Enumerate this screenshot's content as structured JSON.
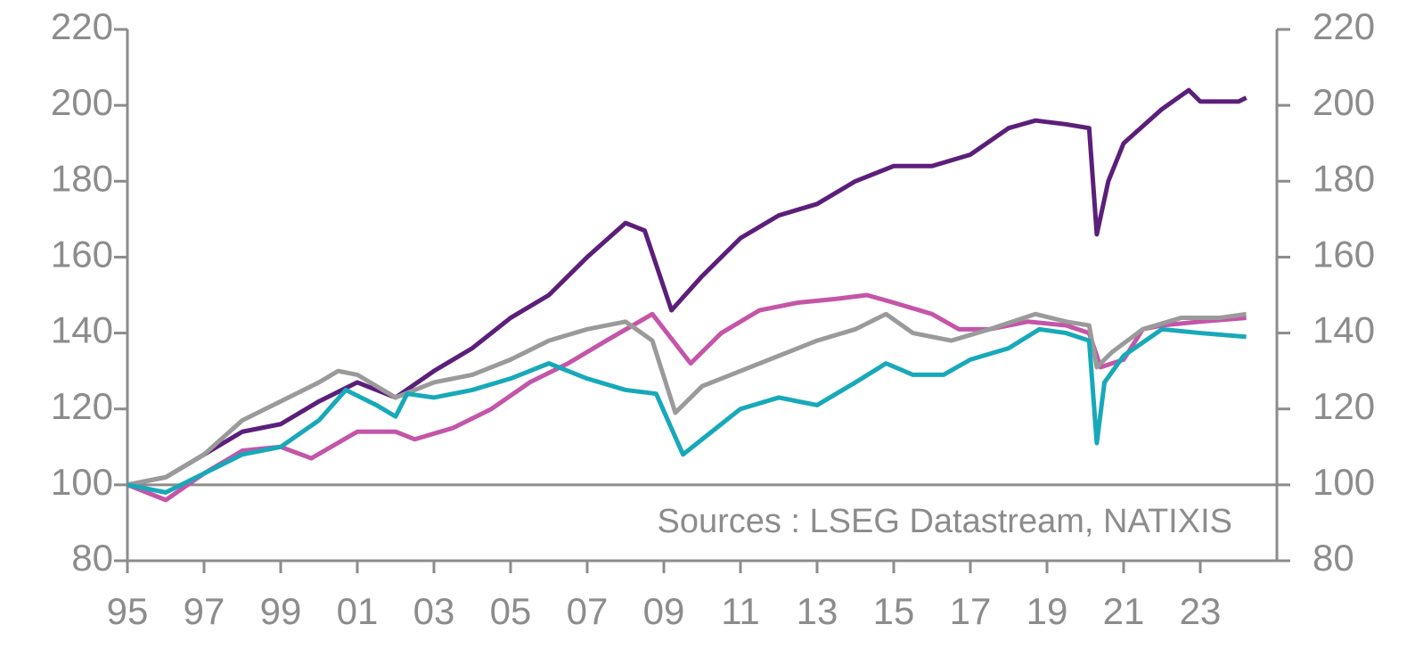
{
  "chart_data": {
    "type": "line",
    "annotation": "Sources : LSEG Datastream, NATIXIS",
    "xlim": [
      1995,
      2025
    ],
    "ylim": [
      80,
      220
    ],
    "y2lim": [
      80,
      220
    ],
    "xticks": [
      {
        "value": 1995,
        "label": "95"
      },
      {
        "value": 1997,
        "label": "97"
      },
      {
        "value": 1999,
        "label": "99"
      },
      {
        "value": 2001,
        "label": "01"
      },
      {
        "value": 2003,
        "label": "03"
      },
      {
        "value": 2005,
        "label": "05"
      },
      {
        "value": 2007,
        "label": "07"
      },
      {
        "value": 2009,
        "label": "09"
      },
      {
        "value": 2011,
        "label": "11"
      },
      {
        "value": 2013,
        "label": "13"
      },
      {
        "value": 2015,
        "label": "15"
      },
      {
        "value": 2017,
        "label": "17"
      },
      {
        "value": 2019,
        "label": "19"
      },
      {
        "value": 2021,
        "label": "21"
      },
      {
        "value": 2023,
        "label": "23"
      }
    ],
    "yticks": [
      80,
      100,
      120,
      140,
      160,
      180,
      200,
      220
    ],
    "y2ticks": [
      80,
      100,
      120,
      140,
      160,
      180,
      200,
      220
    ],
    "reference_line": 100,
    "series": [
      {
        "color": "#5b1f7a",
        "x": [
          1995,
          1996,
          1997,
          1998,
          1999,
          2000,
          2001,
          2002,
          2003,
          2004,
          2005,
          2006,
          2007,
          2008,
          2008.5,
          2009.2,
          2010,
          2011,
          2012,
          2013,
          2014,
          2015,
          2016,
          2017,
          2018,
          2018.7,
          2019.5,
          2020.1,
          2020.3,
          2020.6,
          2021,
          2022,
          2022.7,
          2023,
          2024,
          2024.2
        ],
        "values": [
          100,
          102,
          108,
          114,
          116,
          122,
          127,
          123,
          130,
          136,
          144,
          150,
          160,
          169,
          167,
          146,
          155,
          165,
          171,
          174,
          180,
          184,
          184,
          187,
          194,
          196,
          195,
          194,
          166,
          180,
          190,
          199,
          204,
          201,
          201,
          202
        ]
      },
      {
        "color": "#c455a8",
        "x": [
          1995,
          1996,
          1997,
          1998,
          1999,
          1999.8,
          2001,
          2002,
          2002.5,
          2003.5,
          2004.5,
          2005.5,
          2006.5,
          2007.5,
          2008.7,
          2009.7,
          2010.5,
          2011.5,
          2012.5,
          2013.5,
          2014.3,
          2015,
          2016,
          2016.7,
          2017.5,
          2018.5,
          2019.5,
          2020.1,
          2020.4,
          2021,
          2021.5,
          2022,
          2023,
          2024.2
        ],
        "values": [
          100,
          96,
          103,
          109,
          110,
          107,
          114,
          114,
          112,
          115,
          120,
          127,
          132,
          138,
          145,
          132,
          140,
          146,
          148,
          149,
          150,
          148,
          145,
          141,
          141,
          143,
          142,
          140,
          131,
          133,
          141,
          142,
          143,
          144
        ]
      },
      {
        "color": "#9a9a9a",
        "x": [
          1995,
          1996,
          1997,
          1998,
          1999,
          2000,
          2000.5,
          2001,
          2002,
          2003,
          2004,
          2005,
          2006,
          2007,
          2008,
          2008.7,
          2009.3,
          2010,
          2011,
          2012,
          2013,
          2014,
          2014.8,
          2015.5,
          2016.5,
          2017.5,
          2018.7,
          2019.5,
          2020.1,
          2020.3,
          2020.7,
          2021.5,
          2022.5,
          2023.5,
          2024.2
        ],
        "values": [
          100,
          102,
          108,
          117,
          122,
          127,
          130,
          129,
          123,
          127,
          129,
          133,
          138,
          141,
          143,
          138,
          119,
          126,
          130,
          134,
          138,
          141,
          145,
          140,
          138,
          141,
          145,
          143,
          142,
          131,
          135,
          141,
          144,
          144,
          145
        ]
      },
      {
        "color": "#17a9b9",
        "x": [
          1995,
          1996,
          1997,
          1998,
          1999,
          2000,
          2000.7,
          2001.5,
          2002,
          2002.3,
          2003,
          2004,
          2005,
          2006,
          2007,
          2008,
          2008.8,
          2009.5,
          2010,
          2011,
          2012,
          2013,
          2014,
          2014.8,
          2015.5,
          2016.3,
          2017,
          2018,
          2018.8,
          2019.5,
          2020.1,
          2020.3,
          2020.5,
          2021,
          2022,
          2023,
          2024.2
        ],
        "values": [
          100,
          98,
          103,
          108,
          110,
          117,
          125,
          121,
          118,
          124,
          123,
          125,
          128,
          132,
          128,
          125,
          124,
          108,
          112,
          120,
          123,
          121,
          127,
          132,
          129,
          129,
          133,
          136,
          141,
          140,
          138,
          111,
          127,
          134,
          141,
          140,
          139
        ]
      }
    ]
  }
}
